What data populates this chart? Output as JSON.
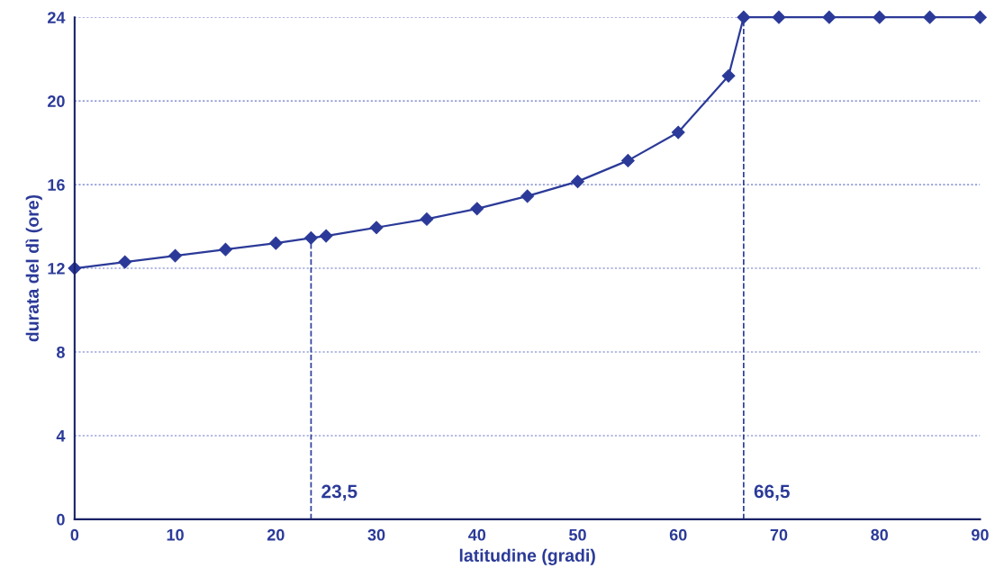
{
  "chart_data": {
    "type": "line",
    "xlabel": "latitudine (gradi)",
    "ylabel": "durata del dì (ore)",
    "x": [
      0,
      5,
      10,
      15,
      20,
      23.5,
      25,
      30,
      35,
      40,
      45,
      50,
      55,
      60,
      65,
      66.5,
      70,
      75,
      80,
      85,
      90
    ],
    "series": [
      {
        "color": "#2b3a98",
        "values": [
          12,
          12.3,
          12.6,
          12.9,
          13.2,
          13.45,
          13.55,
          13.95,
          14.35,
          14.85,
          15.45,
          16.15,
          17.15,
          18.5,
          21.2,
          24,
          24,
          24,
          24,
          24,
          24
        ]
      }
    ],
    "xlim": [
      0,
      90
    ],
    "xticks": [
      0,
      10,
      20,
      30,
      40,
      50,
      60,
      70,
      80,
      90
    ],
    "ylim": [
      0,
      24
    ],
    "yticks": [
      0,
      4,
      8,
      12,
      16,
      20,
      24
    ],
    "ref_lines": [
      {
        "axis": "x",
        "value": 23.5,
        "label": "23,5",
        "color": "#2b3a98",
        "line_style": "dashed"
      },
      {
        "axis": "x",
        "value": 66.5,
        "label": "66,5",
        "color": "#2b3a98",
        "line_style": "dashed"
      }
    ],
    "grid": "y",
    "marker": "diamond",
    "line_style": "solid",
    "legend": false
  }
}
